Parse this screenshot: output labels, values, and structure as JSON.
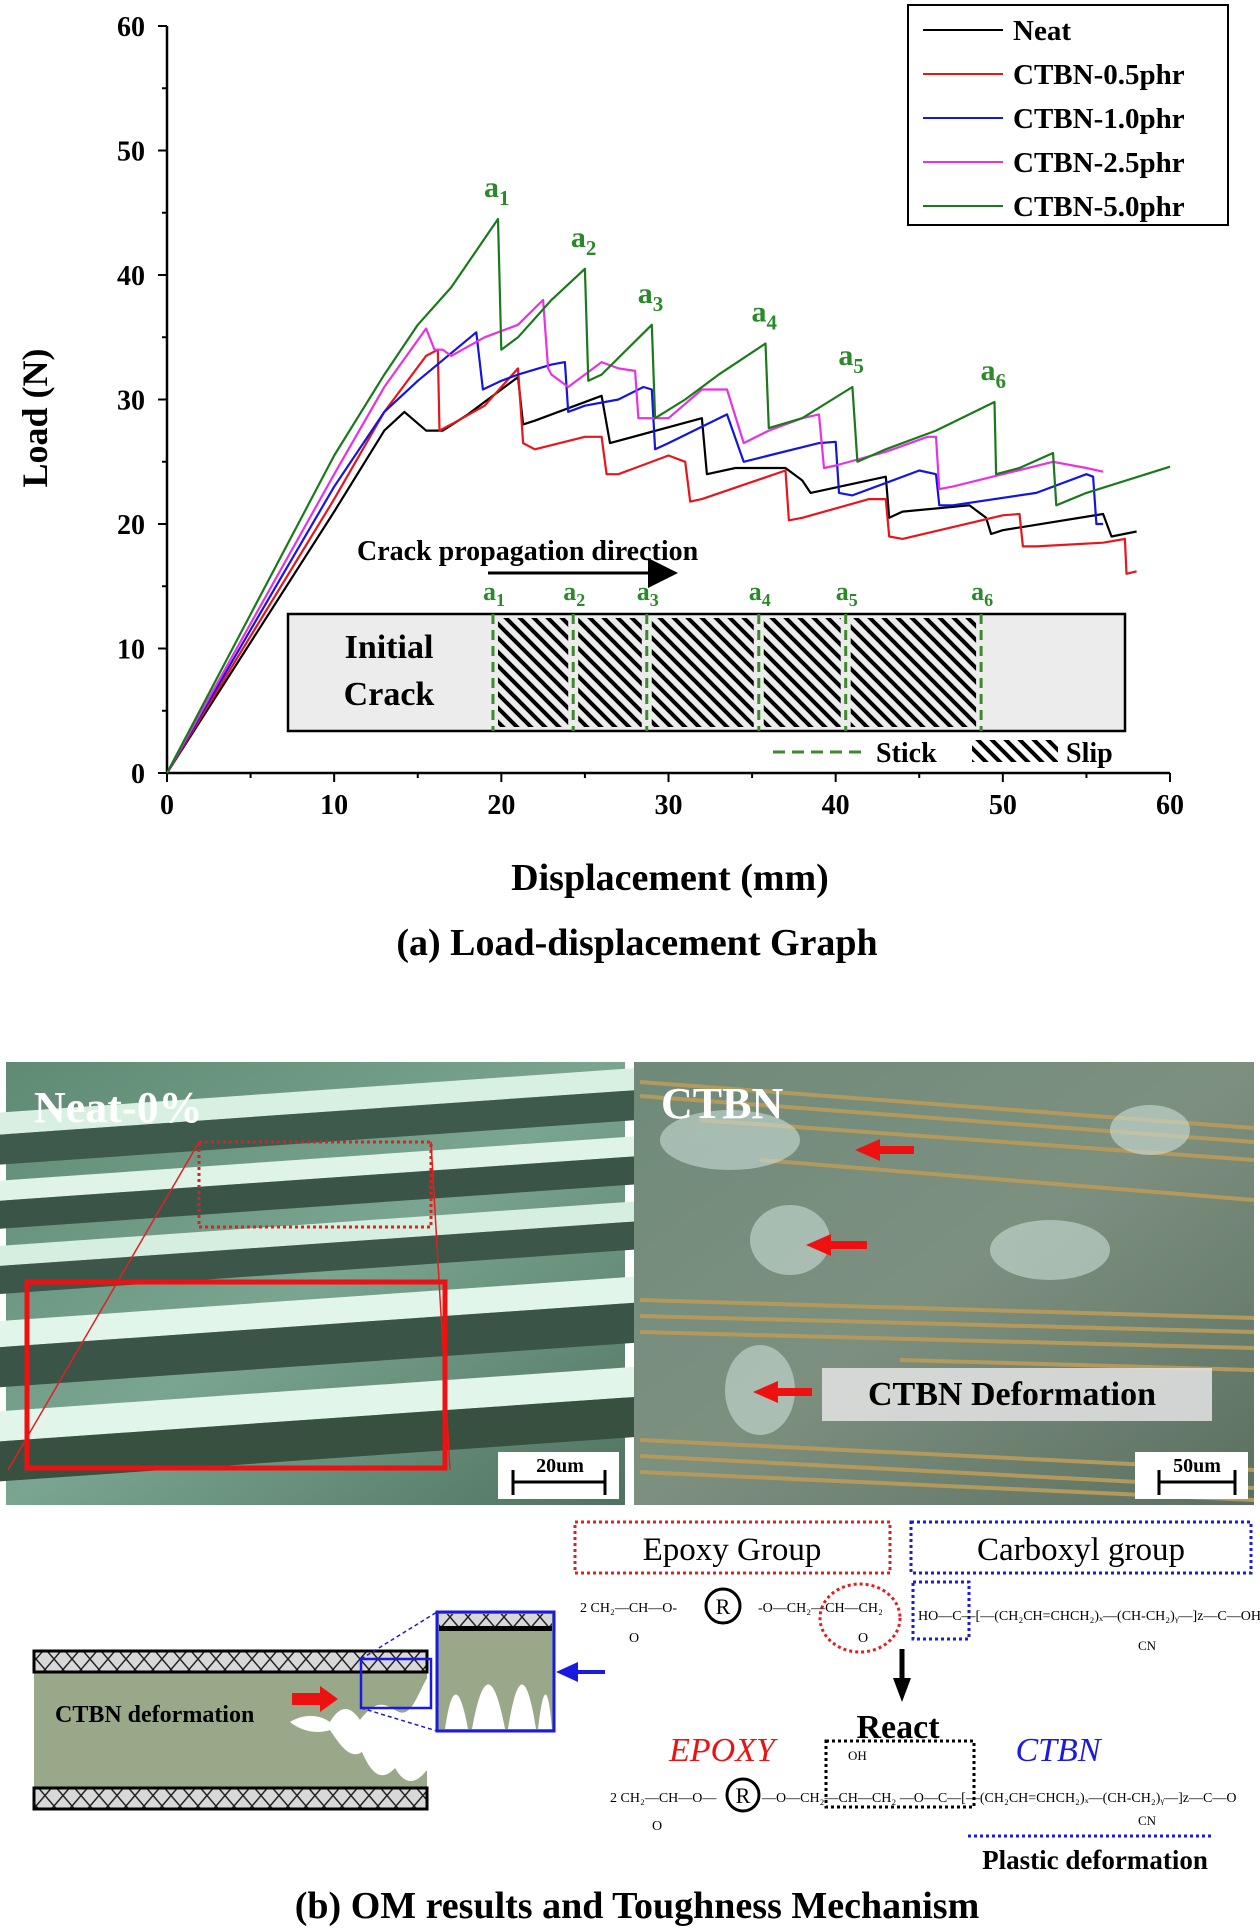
{
  "chart_data": {
    "type": "line",
    "title": "",
    "caption": "(a) Load-displacement Graph",
    "xlabel": "Displacement (mm)",
    "ylabel": "Load (N)",
    "xlim": [
      0,
      60
    ],
    "ylim": [
      0,
      60
    ],
    "xticks": [
      "0",
      "10",
      "20",
      "30",
      "40",
      "50",
      "60"
    ],
    "yticks": [
      "0",
      "10",
      "20",
      "30",
      "40",
      "50",
      "60"
    ],
    "grid": false,
    "legend_position": "top-right",
    "series": [
      {
        "name": "Neat",
        "color": "#000000",
        "points": [
          [
            0,
            0
          ],
          [
            10,
            21
          ],
          [
            13,
            27.5
          ],
          [
            14.2,
            29
          ],
          [
            15.5,
            27.5
          ],
          [
            16.5,
            27.5
          ],
          [
            18,
            28.8
          ],
          [
            21,
            31.8
          ],
          [
            21.3,
            28
          ],
          [
            22,
            28.3
          ],
          [
            26,
            30.3
          ],
          [
            26.5,
            26.5
          ],
          [
            32,
            28.5
          ],
          [
            32.3,
            24
          ],
          [
            34,
            24.5
          ],
          [
            37,
            24.5
          ],
          [
            38,
            23.5
          ],
          [
            38.5,
            22.5
          ],
          [
            43,
            23.8
          ],
          [
            43.2,
            20.5
          ],
          [
            44,
            21
          ],
          [
            48,
            21.5
          ],
          [
            49,
            20.5
          ],
          [
            49.3,
            19.2
          ],
          [
            50,
            19.5
          ],
          [
            56,
            20.8
          ],
          [
            56.5,
            19
          ],
          [
            58,
            19.4
          ]
        ]
      },
      {
        "name": "CTBN-0.5phr",
        "color": "#e8151b",
        "points": [
          [
            0,
            0
          ],
          [
            10,
            22
          ],
          [
            13,
            29
          ],
          [
            15.5,
            33.5
          ],
          [
            16.2,
            34
          ],
          [
            16.3,
            27.5
          ],
          [
            17,
            28
          ],
          [
            19,
            29.5
          ],
          [
            21,
            32.5
          ],
          [
            21.3,
            26.5
          ],
          [
            22,
            26
          ],
          [
            25,
            27
          ],
          [
            26,
            27
          ],
          [
            26.3,
            24
          ],
          [
            27,
            24
          ],
          [
            30,
            25.5
          ],
          [
            31,
            25
          ],
          [
            31.3,
            21.8
          ],
          [
            32,
            22
          ],
          [
            37,
            24.3
          ],
          [
            37.2,
            20.3
          ],
          [
            38,
            20.5
          ],
          [
            42,
            22
          ],
          [
            43,
            22
          ],
          [
            43.2,
            19
          ],
          [
            44,
            18.8
          ],
          [
            50,
            20.7
          ],
          [
            51,
            20.8
          ],
          [
            51.2,
            18.2
          ],
          [
            52,
            18.2
          ],
          [
            56,
            18.5
          ],
          [
            57.3,
            18.8
          ],
          [
            57.4,
            16
          ],
          [
            58,
            16.2
          ]
        ]
      },
      {
        "name": "CTBN-1.0phr",
        "color": "#1515e0",
        "points": [
          [
            0,
            0
          ],
          [
            10,
            23
          ],
          [
            13,
            29
          ],
          [
            15,
            31.5
          ],
          [
            18.5,
            35.4
          ],
          [
            18.9,
            30.8
          ],
          [
            20,
            31.5
          ],
          [
            21,
            32
          ],
          [
            23,
            32.8
          ],
          [
            23.8,
            33
          ],
          [
            24,
            29
          ],
          [
            25,
            29.5
          ],
          [
            27,
            30
          ],
          [
            28.5,
            31
          ],
          [
            29,
            30.8
          ],
          [
            29.2,
            26
          ],
          [
            30,
            26.5
          ],
          [
            33.5,
            28.8
          ],
          [
            34.5,
            25
          ],
          [
            36,
            25.5
          ],
          [
            39,
            26.5
          ],
          [
            40,
            26.6
          ],
          [
            40.2,
            22.5
          ],
          [
            41,
            22.3
          ],
          [
            45,
            24.3
          ],
          [
            46,
            24
          ],
          [
            46.2,
            21.5
          ],
          [
            47,
            21.5
          ],
          [
            52,
            22.5
          ],
          [
            55,
            24
          ],
          [
            55.4,
            23.8
          ],
          [
            55.6,
            20
          ],
          [
            56,
            20
          ]
        ]
      },
      {
        "name": "CTBN-2.5phr",
        "color": "#e632e6",
        "points": [
          [
            0,
            0
          ],
          [
            10,
            24
          ],
          [
            13,
            31
          ],
          [
            15.5,
            35.7
          ],
          [
            16,
            34
          ],
          [
            16.5,
            34
          ],
          [
            17,
            33.5
          ],
          [
            19,
            35
          ],
          [
            21,
            36
          ],
          [
            22.5,
            38
          ],
          [
            22.8,
            32.5
          ],
          [
            23,
            32
          ],
          [
            24,
            31
          ],
          [
            26,
            33
          ],
          [
            27,
            32.5
          ],
          [
            28,
            32.3
          ],
          [
            28.2,
            28.5
          ],
          [
            29,
            28.5
          ],
          [
            30,
            28.5
          ],
          [
            32,
            30.8
          ],
          [
            33.5,
            30.8
          ],
          [
            34.5,
            26.5
          ],
          [
            36,
            27.5
          ],
          [
            38,
            28.5
          ],
          [
            39,
            28.8
          ],
          [
            39.3,
            24.5
          ],
          [
            40,
            24.7
          ],
          [
            43,
            25.8
          ],
          [
            45.5,
            27
          ],
          [
            46,
            27
          ],
          [
            46.2,
            22.8
          ],
          [
            47,
            23
          ],
          [
            50,
            24
          ],
          [
            53,
            25
          ],
          [
            55,
            24.5
          ],
          [
            56,
            24.2
          ]
        ]
      },
      {
        "name": "CTBN-5.0phr",
        "color": "#1a7a1a",
        "points": [
          [
            0,
            0
          ],
          [
            10,
            25.5
          ],
          [
            13,
            32
          ],
          [
            15,
            36
          ],
          [
            17,
            39
          ],
          [
            19.8,
            44.5
          ],
          [
            20,
            34
          ],
          [
            21,
            35
          ],
          [
            23,
            38
          ],
          [
            25,
            40.5
          ],
          [
            25.2,
            31.5
          ],
          [
            26,
            32
          ],
          [
            29,
            36
          ],
          [
            29.2,
            28.5
          ],
          [
            31,
            30
          ],
          [
            33,
            32
          ],
          [
            35.8,
            34.5
          ],
          [
            36,
            27.7
          ],
          [
            38,
            28.5
          ],
          [
            41,
            31
          ],
          [
            41.3,
            25
          ],
          [
            43,
            26
          ],
          [
            46,
            27.5
          ],
          [
            49.5,
            29.8
          ],
          [
            49.6,
            24
          ],
          [
            51,
            24.5
          ],
          [
            53,
            25.7
          ],
          [
            53.2,
            21.5
          ],
          [
            55,
            22.5
          ],
          [
            60,
            24.6
          ]
        ]
      }
    ],
    "peak_annotations": [
      {
        "label": "a",
        "sub": "1",
        "x": 19.8,
        "y": 44.5
      },
      {
        "label": "a",
        "sub": "2",
        "x": 25,
        "y": 40.5
      },
      {
        "label": "a",
        "sub": "3",
        "x": 29,
        "y": 36
      },
      {
        "label": "a",
        "sub": "4",
        "x": 35.8,
        "y": 34.5
      },
      {
        "label": "a",
        "sub": "5",
        "x": 41,
        "y": 31
      },
      {
        "label": "a",
        "sub": "6",
        "x": 49.5,
        "y": 29.8
      }
    ],
    "annotation_color": "#2a8a2a",
    "inset": {
      "direction_label": "Crack propagation direction",
      "initial_crack_line1": "Initial",
      "initial_crack_line2": "Crack",
      "stick_label": "Stick",
      "slip_label": "Slip",
      "markers": [
        {
          "label": "a",
          "sub": "1"
        },
        {
          "label": "a",
          "sub": "2"
        },
        {
          "label": "a",
          "sub": "3"
        },
        {
          "label": "a",
          "sub": "4"
        },
        {
          "label": "a",
          "sub": "5"
        },
        {
          "label": "a",
          "sub": "6"
        }
      ]
    }
  },
  "om": {
    "left_label": "Neat-0%",
    "left_scale": "20um",
    "right_label": "CTBN",
    "right_scale": "50um",
    "right_annotation": "CTBN Deformation"
  },
  "mechanism": {
    "diagram_label": "CTBN deformation",
    "epoxy_group": "Epoxy Group",
    "carboxyl_group": "Carboxyl group",
    "react": "React",
    "epoxy": "EPOXY",
    "ctbn": "CTBN",
    "plastic_deformation": "Plastic deformation",
    "r_symbol": "R",
    "formula1_left": "2 CH₂—CH—O-",
    "formula1_epoxy_right": "-O—CH₂—CH—CH₂",
    "formula1_carboxyl": "HO—C—[—(CH₂CH=CHCH₂)ₓ—(CH-CH₂)ᵧ—]z—C—OH",
    "formula2_left": "2 CH₂—CH—O—",
    "formula2_right": "—O—CH₂—CH—CH₂ —O—C—[—(CH₂CH=CHCH₂)ₓ—(CH-CH₂)ᵧ—]z—C—O",
    "oxygen": "O",
    "hydroxyl": "OH",
    "nitrile": "CN",
    "caption": "(b) OM results and Toughness Mechanism"
  }
}
